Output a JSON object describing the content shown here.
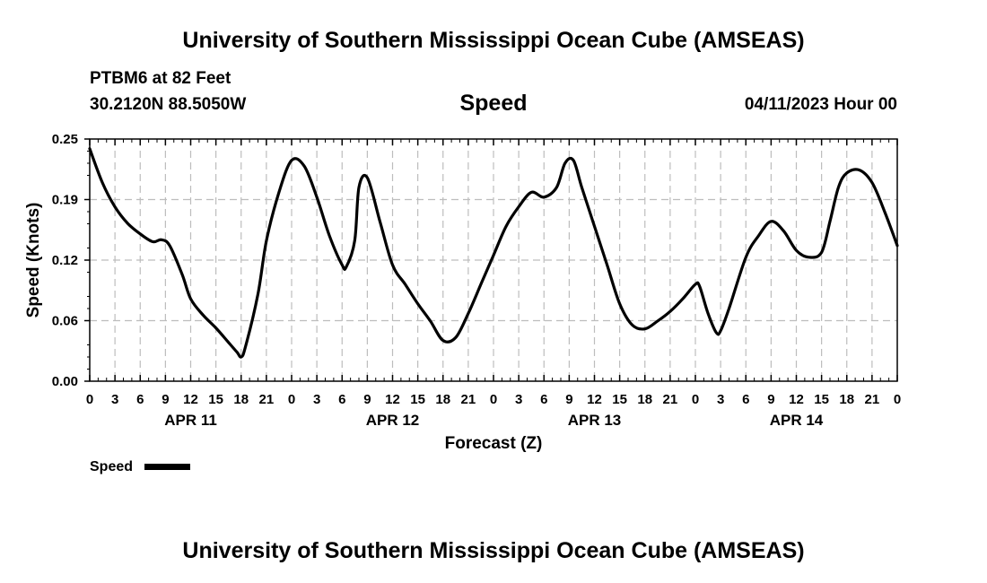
{
  "header": {
    "title": "University of Southern Mississippi Ocean Cube (AMSEAS)",
    "station": "PTBM6 at 82 Feet",
    "coords": "30.2120N  88.5050W",
    "subtitle": "Speed",
    "datetime": "04/11/2023 Hour 00"
  },
  "footer": {
    "title": "University of Southern Mississippi Ocean Cube (AMSEAS)"
  },
  "chart_data": {
    "type": "line",
    "title": "Speed",
    "xlabel": "Forecast (Z)",
    "ylabel": "Speed (Knots)",
    "xlim": [
      0,
      96
    ],
    "ylim": [
      0,
      0.25
    ],
    "grid": true,
    "y_ticks": [
      {
        "value": 0,
        "label": "0.00"
      },
      {
        "value": 0.0625,
        "label": "0.06"
      },
      {
        "value": 0.125,
        "label": "0.12"
      },
      {
        "value": 0.1875,
        "label": "0.19"
      },
      {
        "value": 0.25,
        "label": "0.25"
      }
    ],
    "x_ticks": [
      "0",
      "3",
      "6",
      "9",
      "12",
      "15",
      "18",
      "21",
      "0",
      "3",
      "6",
      "9",
      "12",
      "15",
      "18",
      "21",
      "0",
      "3",
      "6",
      "9",
      "12",
      "15",
      "18",
      "21",
      "0",
      "3",
      "6",
      "9",
      "12",
      "15",
      "18",
      "21",
      "0"
    ],
    "day_labels": [
      {
        "hour": 12,
        "label": "APR 11"
      },
      {
        "hour": 36,
        "label": "APR 12"
      },
      {
        "hour": 60,
        "label": "APR 13"
      },
      {
        "hour": 84,
        "label": "APR 14"
      }
    ],
    "legend": {
      "label": "Speed",
      "position": "bottom-left"
    },
    "series": [
      {
        "name": "Speed",
        "color": "#000000",
        "x": [
          0,
          1.5,
          3,
          4.5,
          6,
          7.5,
          8.5,
          9.5,
          11,
          12,
          13.5,
          15,
          16.5,
          17.5,
          18,
          18.5,
          20,
          21,
          22.5,
          24,
          25.5,
          27,
          28.5,
          30,
          30.5,
          31.5,
          32,
          33,
          34.5,
          36,
          37.5,
          39,
          40.5,
          42,
          43.5,
          45,
          46.5,
          48,
          49.5,
          51,
          52.5,
          54,
          55.5,
          56.5,
          57.5,
          58.5,
          60,
          61.5,
          63,
          64.5,
          66,
          67.5,
          69,
          70.5,
          72,
          72.5,
          73.5,
          74.5,
          75,
          76,
          78,
          79.5,
          81,
          82.5,
          84,
          85.5,
          87,
          88,
          89,
          90,
          91.5,
          93,
          94.5,
          96
        ],
        "values": [
          0.24,
          0.205,
          0.18,
          0.163,
          0.152,
          0.144,
          0.146,
          0.14,
          0.11,
          0.085,
          0.068,
          0.055,
          0.04,
          0.03,
          0.025,
          0.035,
          0.09,
          0.145,
          0.195,
          0.228,
          0.222,
          0.19,
          0.15,
          0.12,
          0.118,
          0.145,
          0.2,
          0.21,
          0.165,
          0.12,
          0.1,
          0.08,
          0.062,
          0.042,
          0.045,
          0.07,
          0.1,
          0.13,
          0.16,
          0.18,
          0.195,
          0.19,
          0.2,
          0.225,
          0.228,
          0.2,
          0.16,
          0.12,
          0.08,
          0.058,
          0.054,
          0.062,
          0.072,
          0.085,
          0.1,
          0.098,
          0.07,
          0.05,
          0.052,
          0.075,
          0.128,
          0.15,
          0.165,
          0.155,
          0.135,
          0.128,
          0.133,
          0.165,
          0.2,
          0.215,
          0.218,
          0.205,
          0.175,
          0.14
        ]
      }
    ]
  }
}
